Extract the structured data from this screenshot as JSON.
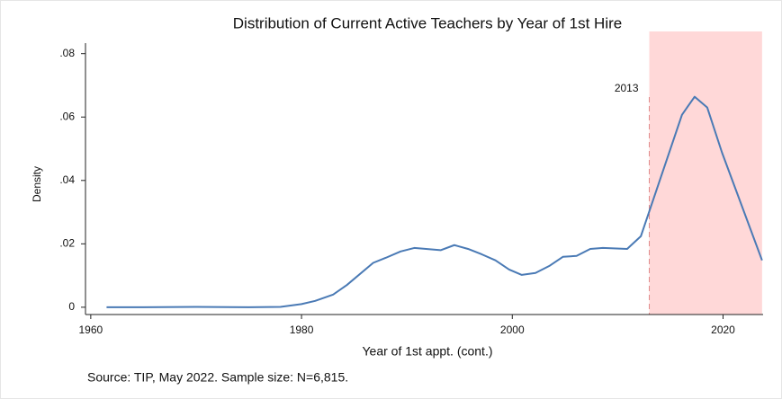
{
  "chart_data": {
    "type": "line",
    "title": "Distribution of Current Active Teachers by Year of 1st Hire",
    "x_label": "Year of 1st appt. (cont.)",
    "y_label": "Density",
    "note": "Source: TIP, May 2022. Sample size: N=6,815.",
    "x": [
      1961.5,
      1965,
      1970,
      1975,
      1978,
      1980,
      1981.3,
      1983,
      1984.3,
      1986.8,
      1988,
      1989.4,
      1990.7,
      1993.2,
      1994.5,
      1995.8,
      1997.1,
      1998.4,
      1999.7,
      2000.9,
      2002.2,
      2003.5,
      2004.8,
      2006.1,
      2007.4,
      2008.6,
      2010.9,
      2012.2,
      2016.1,
      2017.3,
      2018.5,
      2019.9,
      2023.7
    ],
    "values": [
      0,
      0,
      0.0001,
      0,
      0.0001,
      0.001,
      0.002,
      0.004,
      0.007,
      0.014,
      0.0156,
      0.0176,
      0.0187,
      0.018,
      0.0196,
      0.0184,
      0.0167,
      0.0148,
      0.0119,
      0.0102,
      0.0108,
      0.013,
      0.0159,
      0.0162,
      0.0184,
      0.0187,
      0.0184,
      0.0224,
      0.0607,
      0.0664,
      0.063,
      0.0488,
      0.0148
    ],
    "color": "#4a7ab5",
    "xlim": [
      1959.5,
      2023.8
    ],
    "ylim": [
      -0.0023,
      0.087
    ],
    "xticks": [
      1960,
      1980,
      2000,
      2020
    ],
    "yticks": [
      0,
      {
        "value": 0.02,
        "label": ".02"
      },
      {
        "value": 0.04,
        "label": ".04"
      },
      {
        "value": 0.06,
        "label": ".06"
      },
      {
        "value": 0.08,
        "label": ".08"
      }
    ],
    "annotation": {
      "x": 2013
    },
    "highlight": {
      "x": [
        2013,
        2023.7
      ],
      "color": "#ffd8d8"
    },
    "grid": false
  }
}
